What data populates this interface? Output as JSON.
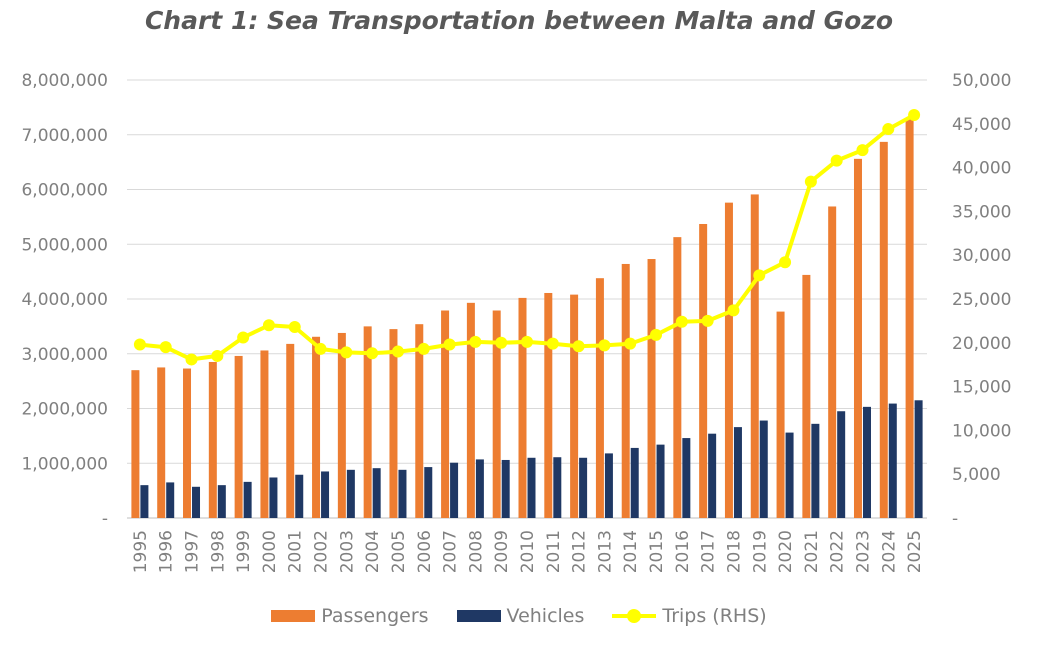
{
  "title": "Chart 1: Sea Transportation between Malta and Gozo",
  "colors": {
    "passengers": "#ed7d31",
    "vehicles": "#1f3864",
    "trips": "#ffff00",
    "grid": "#d9d9d9",
    "text": "#808080"
  },
  "chart_data": {
    "type": "bar",
    "title": "Chart 1: Sea Transportation between Malta and Gozo",
    "categories": [
      "1995",
      "1996",
      "1997",
      "1998",
      "1999",
      "2000",
      "2001",
      "2002",
      "2003",
      "2004",
      "2005",
      "2006",
      "2007",
      "2008",
      "2009",
      "2010",
      "2011",
      "2012",
      "2013",
      "2014",
      "2015",
      "2016",
      "2017",
      "2018",
      "2019",
      "2020",
      "2021",
      "2022",
      "2023",
      "2024",
      "2025"
    ],
    "series": [
      {
        "name": "Passengers",
        "type": "bar",
        "axis": "left",
        "values": [
          2700000,
          2750000,
          2730000,
          2850000,
          2960000,
          3060000,
          3180000,
          3310000,
          3380000,
          3500000,
          3450000,
          3540000,
          3790000,
          3930000,
          3790000,
          4020000,
          4110000,
          4080000,
          4380000,
          4640000,
          4730000,
          5130000,
          5370000,
          5760000,
          5910000,
          3770000,
          4440000,
          5690000,
          6560000,
          6870000,
          7290000
        ]
      },
      {
        "name": "Vehicles",
        "type": "bar",
        "axis": "left",
        "values": [
          600000,
          650000,
          570000,
          600000,
          660000,
          740000,
          790000,
          850000,
          880000,
          910000,
          880000,
          930000,
          1010000,
          1070000,
          1060000,
          1100000,
          1110000,
          1100000,
          1180000,
          1280000,
          1340000,
          1460000,
          1540000,
          1660000,
          1780000,
          1560000,
          1720000,
          1950000,
          2030000,
          2090000,
          2150000
        ]
      },
      {
        "name": "Trips (RHS)",
        "type": "line",
        "axis": "right",
        "values": [
          19800,
          19500,
          18100,
          18500,
          20600,
          22000,
          21800,
          19300,
          18900,
          18800,
          19000,
          19300,
          19800,
          20100,
          20000,
          20100,
          19900,
          19600,
          19700,
          19900,
          20900,
          22400,
          22500,
          23700,
          27700,
          29200,
          38400,
          40800,
          42000,
          44400,
          46000
        ]
      }
    ],
    "yleft": {
      "min": 0,
      "max": 8000000,
      "ticks": [
        "-",
        "1,000,000",
        "2,000,000",
        "3,000,000",
        "4,000,000",
        "5,000,000",
        "6,000,000",
        "7,000,000",
        "8,000,000"
      ]
    },
    "yright": {
      "min": 0,
      "max": 50000,
      "ticks": [
        "-",
        "5,000",
        "10,000",
        "15,000",
        "20,000",
        "25,000",
        "30,000",
        "35,000",
        "40,000",
        "45,000",
        "50,000"
      ]
    },
    "grid": true,
    "legend": "bottom"
  },
  "legend": {
    "passengers": "Passengers",
    "vehicles": "Vehicles",
    "trips": "Trips (RHS)"
  }
}
